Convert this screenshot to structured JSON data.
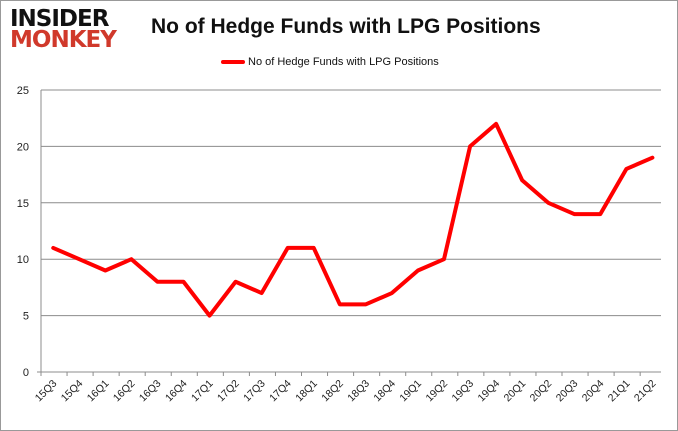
{
  "logo": {
    "line1": "INSIDER",
    "line2": "MONKEY"
  },
  "chart_data": {
    "type": "line",
    "title": "No of Hedge Funds with LPG Positions",
    "xlabel": "",
    "ylabel": "",
    "categories": [
      "15Q3",
      "15Q4",
      "16Q1",
      "16Q2",
      "16Q3",
      "16Q4",
      "17Q1",
      "17Q2",
      "17Q3",
      "17Q4",
      "18Q1",
      "18Q2",
      "18Q3",
      "18Q4",
      "19Q1",
      "19Q2",
      "19Q3",
      "19Q4",
      "20Q1",
      "20Q2",
      "20Q3",
      "20Q4",
      "21Q1",
      "21Q2"
    ],
    "series": [
      {
        "name": "No of Hedge Funds with LPG Positions",
        "color": "#ff0000",
        "values": [
          11,
          10,
          9,
          10,
          8,
          8,
          5,
          8,
          7,
          11,
          11,
          6,
          6,
          7,
          9,
          10,
          20,
          22,
          17,
          15,
          14,
          14,
          18,
          19
        ]
      }
    ],
    "ylim": [
      0,
      25
    ],
    "yticks": [
      0,
      5,
      10,
      15,
      20,
      25
    ],
    "grid": true,
    "legend": "top"
  }
}
